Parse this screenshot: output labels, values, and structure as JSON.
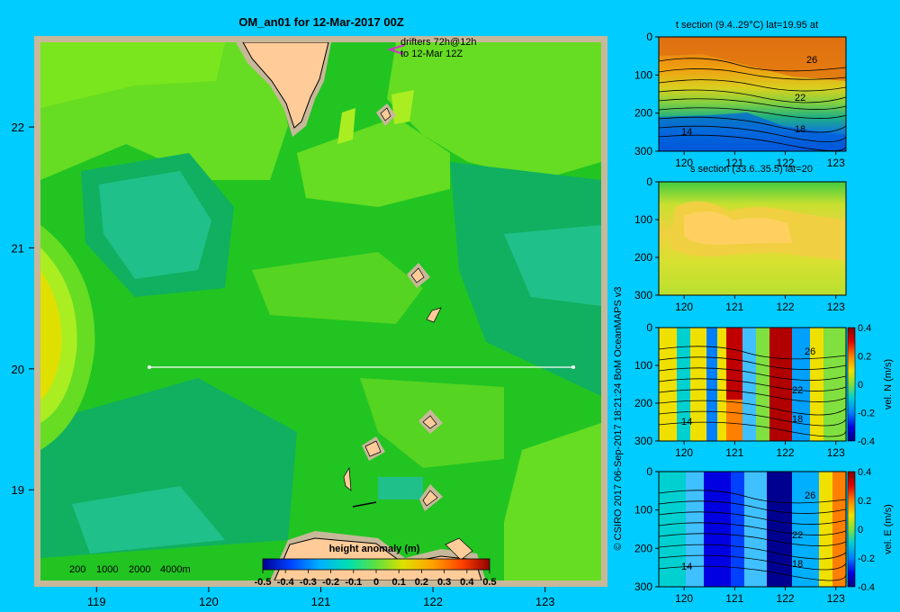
{
  "main_map": {
    "title": "OM_an01 for 12-Mar-2017 00Z",
    "drifters_line1": "drifters 72h@12h",
    "drifters_line2": "to 12-Mar 12Z",
    "depth_legend": [
      "200",
      "1000",
      "2000",
      "4000m"
    ],
    "colorbar_title": "height anomaly (m)",
    "colorbar_ticks": [
      "-0.5",
      "-0.4",
      "-0.3",
      "-0.2",
      "-0.1",
      "0",
      "0.1",
      "0.2",
      "0.3",
      "0.4",
      "0.5"
    ],
    "colors": {
      "background": "#00ccff",
      "frame": "#c8b89a",
      "land": "#ffcc99",
      "section_line": "#ffffff",
      "drifter": "#cc33cc"
    }
  },
  "credit": "© CSIRO 2017  06-Sep-2017 18:21:24 BoM OceanMAPS v3",
  "chart_data": [
    {
      "type": "heatmap",
      "panel": "map",
      "title": "OM_an01 for 12-Mar-2017 00Z",
      "x_ticks": [
        "119",
        "120",
        "121",
        "122",
        "123"
      ],
      "y_ticks": [
        "22",
        "21",
        "20",
        "19"
      ],
      "x": [
        119,
        120,
        121,
        122,
        123
      ],
      "y": [
        22,
        21,
        20,
        19
      ],
      "xlim": [
        118.5,
        123.5
      ],
      "ylim": [
        18.25,
        22.7
      ],
      "section_line": {
        "lat": 20,
        "lon_start": 119.5,
        "lon_end": 123.2
      },
      "colorbar": {
        "label": "height anomaly (m)",
        "range": [
          -0.5,
          0.5
        ]
      }
    },
    {
      "type": "heatmap",
      "panel": "t_section",
      "title": "t section (9.4..29°C) lat=19.95 at",
      "x_ticks": [
        "120",
        "121",
        "122",
        "123"
      ],
      "y_ticks": [
        "0",
        "100",
        "200",
        "300"
      ],
      "xlim": [
        119.5,
        123.2
      ],
      "ylim": [
        300,
        0
      ],
      "contour_labels": [
        "26",
        "22",
        "18",
        "14"
      ]
    },
    {
      "type": "heatmap",
      "panel": "s_section",
      "title": "s section (33.6..35.5) lat=20",
      "x_ticks": [
        "120",
        "121",
        "122",
        "123"
      ],
      "y_ticks": [
        "0",
        "100",
        "200",
        "300"
      ],
      "xlim": [
        119.5,
        123.2
      ],
      "ylim": [
        300,
        0
      ]
    },
    {
      "type": "heatmap",
      "panel": "vel_n",
      "x_ticks": [
        "120",
        "121",
        "122",
        "123"
      ],
      "y_ticks": [
        "0",
        "100",
        "200",
        "300"
      ],
      "xlim": [
        119.5,
        123.2
      ],
      "ylim": [
        300,
        0
      ],
      "contour_labels": [
        "26",
        "22",
        "18",
        "14"
      ],
      "colorbar": {
        "label": "vel. N  (m/s)",
        "ticks": [
          "0.4",
          "0.2",
          "0",
          "-0.2",
          "-0.4"
        ],
        "range": [
          -0.4,
          0.4
        ]
      }
    },
    {
      "type": "heatmap",
      "panel": "vel_e",
      "x_ticks": [
        "120",
        "121",
        "122",
        "123"
      ],
      "y_ticks": [
        "0",
        "100",
        "200",
        "300"
      ],
      "xlim": [
        119.5,
        123.2
      ],
      "ylim": [
        300,
        0
      ],
      "contour_labels": [
        "26",
        "22",
        "18",
        "14"
      ],
      "colorbar": {
        "label": "vel. E  (m/s)",
        "ticks": [
          "0.4",
          "0.2",
          "0",
          "-0.2",
          "-0.4"
        ],
        "range": [
          -0.4,
          0.4
        ]
      }
    }
  ]
}
